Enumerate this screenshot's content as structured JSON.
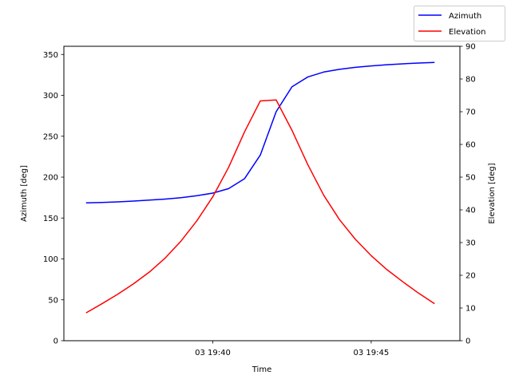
{
  "chart_data": {
    "type": "line",
    "xlabel": "Time",
    "ylabel_left": "Azimuth [deg]",
    "ylabel_right": "Elevation [deg]",
    "x_unit": "minutes after 19:36:00",
    "x_ticks": [
      {
        "t": 4,
        "label": "03 19:40"
      },
      {
        "t": 9,
        "label": "03 19:45"
      }
    ],
    "xlim": [
      -0.7,
      11.8
    ],
    "ylim_left": [
      0,
      360
    ],
    "yticks_left": [
      0,
      50,
      100,
      150,
      200,
      250,
      300,
      350
    ],
    "ylim_right": [
      0,
      90
    ],
    "yticks_right": [
      0,
      10,
      20,
      30,
      40,
      50,
      60,
      70,
      80,
      90
    ],
    "legend_position": "top-right",
    "grid": false,
    "x": [
      0,
      0.5,
      1,
      1.5,
      2,
      2.5,
      3,
      3.5,
      4,
      4.5,
      5,
      5.5,
      6,
      6.5,
      7,
      7.5,
      8,
      8.5,
      9,
      9.5,
      10,
      10.5,
      11
    ],
    "series": [
      {
        "name": "Azimuth",
        "axis": "left",
        "color": "#0000ff",
        "values": [
          168.5,
          169,
          169.8,
          170.7,
          171.9,
          173.2,
          174.9,
          177.3,
          180.5,
          186,
          198,
          227,
          280,
          310.5,
          322.5,
          328.5,
          331.8,
          334.3,
          336,
          337.4,
          338.6,
          339.5,
          340.3
        ]
      },
      {
        "name": "Elevation",
        "axis": "right",
        "color": "#ff0000",
        "values": [
          8.5,
          11.3,
          14.2,
          17.4,
          21,
          25.3,
          30.5,
          36.7,
          44,
          53,
          63.8,
          73.3,
          73.6,
          64.3,
          53.8,
          44.5,
          37,
          31,
          26,
          21.7,
          18,
          14.5,
          11.3
        ]
      }
    ]
  }
}
